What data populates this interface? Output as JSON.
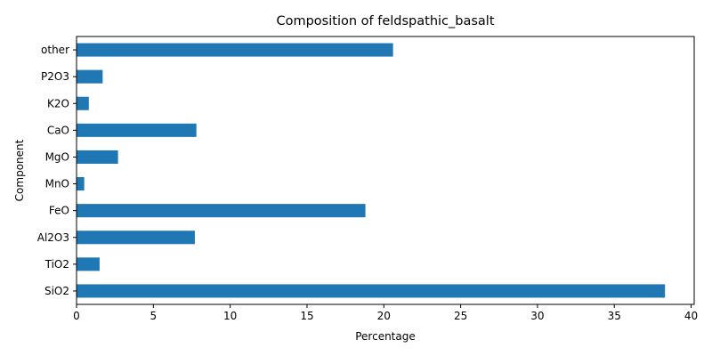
{
  "chart_data": {
    "type": "bar",
    "orientation": "horizontal",
    "title": "Composition of feldspathic_basalt",
    "xlabel": "Percentage",
    "ylabel": "Component",
    "categories": [
      "SiO2",
      "TiO2",
      "Al2O3",
      "FeO",
      "MnO",
      "MgO",
      "CaO",
      "K2O",
      "P2O3",
      "other"
    ],
    "values": [
      38.3,
      1.5,
      7.7,
      18.8,
      0.5,
      2.7,
      7.8,
      0.8,
      1.7,
      20.6
    ],
    "xlim": [
      0,
      40.2
    ],
    "xticks": [
      0,
      5,
      10,
      15,
      20,
      25,
      30,
      35,
      40
    ],
    "grid": false,
    "bar_color": "#1f77b4"
  }
}
